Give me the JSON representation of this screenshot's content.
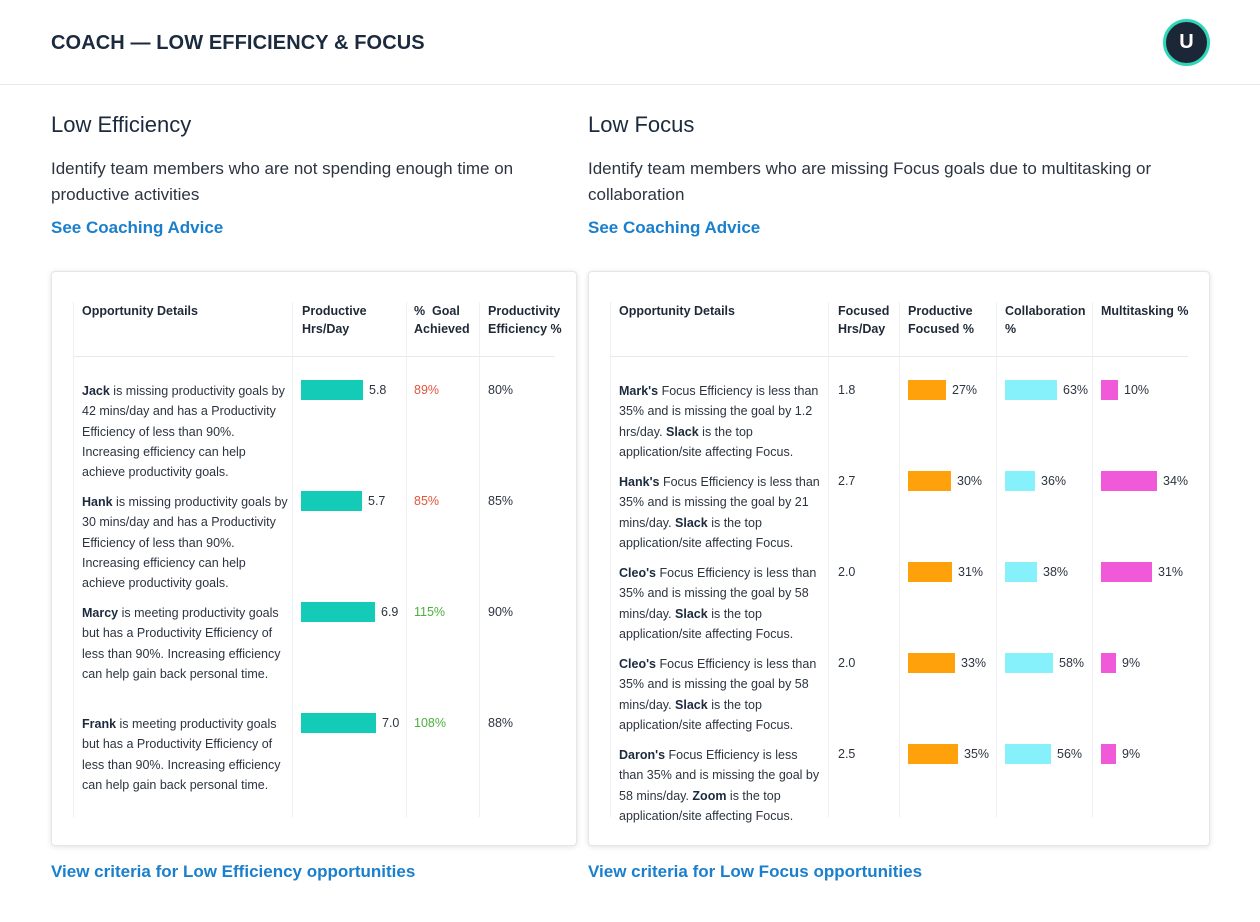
{
  "header": {
    "title": "COACH — LOW EFFICIENCY & FOCUS",
    "avatar_initial": "U"
  },
  "colors": {
    "productive_bar": "#14cbb8",
    "focused_bar": "#ffa10a",
    "collab_bar": "#86f0fb",
    "multi_bar": "#f05ad9",
    "link": "#1a7fcc",
    "avatar_ring": "#2fd6b8"
  },
  "low_efficiency": {
    "title": "Low Efficiency",
    "description": "Identify team members who are not spending enough time on productive activities",
    "advice_link": "See Coaching Advice",
    "criteria_link": "View criteria for Low Efficiency opportunities",
    "columns": [
      "Opportunity Details",
      "Productive Hrs/Day",
      "%  Goal Achieved",
      "Productivity Efficiency %"
    ],
    "rows": [
      {
        "name": "Jack",
        "detail": " is missing productivity goals by 42 mins/day and has a Productivity Efficiency of less than 90%. Increasing efficiency can help achieve productivity goals.",
        "productive_hrs": 5.8,
        "productive_label": "5.8",
        "goal": "89%",
        "goal_status": "red",
        "efficiency": "80%"
      },
      {
        "name": "Hank",
        "detail": " is missing productivity goals by 30 mins/day and has a Productivity Efficiency of less than 90%. Increasing efficiency can help achieve productivity goals.",
        "productive_hrs": 5.7,
        "productive_label": "5.7",
        "goal": "85%",
        "goal_status": "red",
        "efficiency": "85%"
      },
      {
        "name": "Marcy",
        "detail": " is meeting productivity goals but has a Productivity Efficiency of less than 90%. Increasing efficiency can help gain back personal time.",
        "productive_hrs": 6.9,
        "productive_label": "6.9",
        "goal": "115%",
        "goal_status": "green",
        "efficiency": "90%"
      },
      {
        "name": "Frank",
        "detail": " is meeting productivity goals but has a Productivity Efficiency of less than 90%. Increasing efficiency can help gain back personal time.",
        "productive_hrs": 7.0,
        "productive_label": "7.0",
        "goal": "108%",
        "goal_status": "green",
        "efficiency": "88%"
      }
    ]
  },
  "low_focus": {
    "title": "Low Focus",
    "description": "Identify team members who are missing Focus goals due to multitasking or collaboration",
    "advice_link": "See Coaching Advice",
    "criteria_link": "View criteria for Low Focus opportunities",
    "columns": [
      "Opportunity Details",
      "Focused Hrs/Day",
      "Productive Focused %",
      "Collaboration %",
      "Multitasking %"
    ],
    "rows": [
      {
        "name": "Mark's",
        "detail_a": " Focus Efficiency is less than 35% and is missing the goal by 1.2 hrs/day. ",
        "app": "Slack",
        "detail_b": " is the top application/site affecting Focus.",
        "focused_hrs": "1.8",
        "productive_focused": 27,
        "productive_focused_label": "27%",
        "collaboration": 63,
        "collaboration_label": "63%",
        "multitasking": 10,
        "multitasking_label": "10%"
      },
      {
        "name": "Hank's",
        "detail_a": " Focus Efficiency is less than 35% and is missing the goal by 21 mins/day. ",
        "app": "Slack",
        "detail_b": " is the top application/site affecting Focus.",
        "focused_hrs": "2.7",
        "productive_focused": 30,
        "productive_focused_label": "30%",
        "collaboration": 36,
        "collaboration_label": "36%",
        "multitasking": 34,
        "multitasking_label": "34%"
      },
      {
        "name": "Cleo's",
        "detail_a": " Focus Efficiency is less than 35% and is missing the goal by 58 mins/day. ",
        "app": "Slack",
        "detail_b": " is the top application/site affecting Focus.",
        "focused_hrs": "2.0",
        "productive_focused": 31,
        "productive_focused_label": "31%",
        "collaboration": 38,
        "collaboration_label": "38%",
        "multitasking": 31,
        "multitasking_label": "31%"
      },
      {
        "name": "Cleo's",
        "detail_a": " Focus Efficiency is less than 35% and is missing the goal by 58 mins/day. ",
        "app": "Slack",
        "detail_b": " is the top application/site affecting Focus.",
        "focused_hrs": "2.0",
        "productive_focused": 33,
        "productive_focused_label": "33%",
        "collaboration": 58,
        "collaboration_label": "58%",
        "multitasking": 9,
        "multitasking_label": "9%"
      },
      {
        "name": "Daron's",
        "detail_a": " Focus Efficiency is less than 35% and is missing the goal by 58 mins/day. ",
        "app": "Zoom",
        "detail_b": " is the top application/site affecting Focus.",
        "focused_hrs": "2.5",
        "productive_focused": 35,
        "productive_focused_label": "35%",
        "collaboration": 56,
        "collaboration_label": "56%",
        "multitasking": 9,
        "multitasking_label": "9%"
      }
    ]
  }
}
